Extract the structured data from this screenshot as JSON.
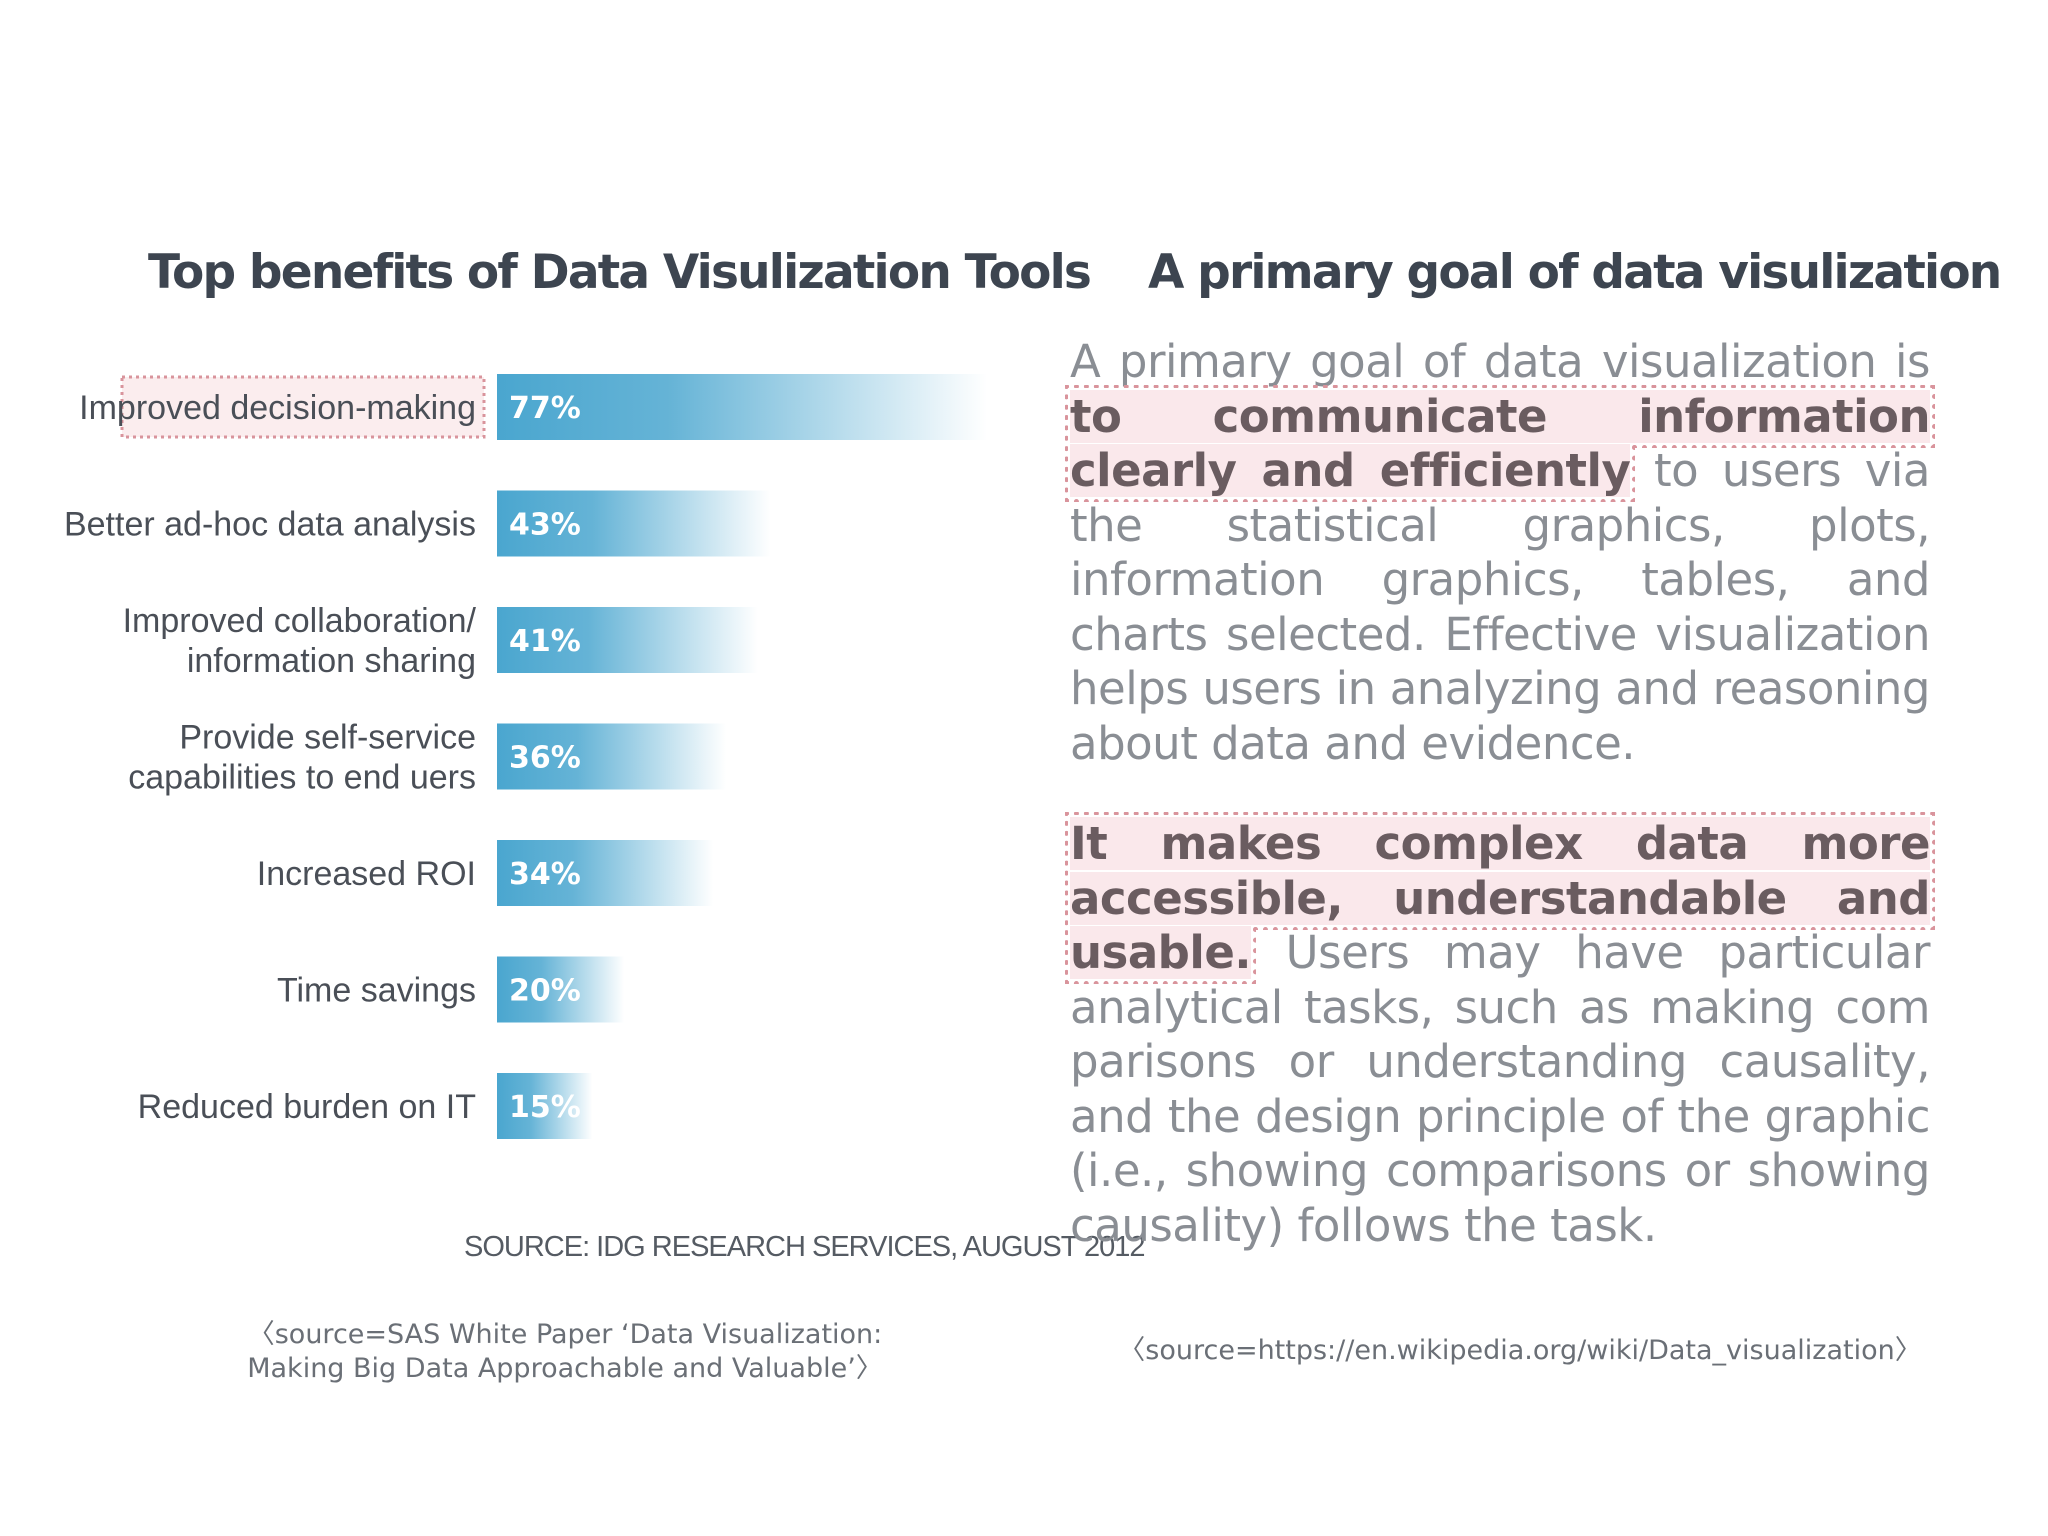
{
  "left_panel": {
    "title": "Top benefits of Data Visulization Tools",
    "source_note": "SOURCE: IDG RESEARCH SERVICES, AUGUST 2012",
    "citation_line1": "〈source=SAS White Paper ‘Data Visualization:",
    "citation_line2": "Making Big Data Approachable  and Valuable’〉"
  },
  "right_panel": {
    "title": "A primary goal of data visulization",
    "para1": {
      "pre": "A primary goal of data visualization is ",
      "highlight": "to communicate information clearly and efficiently",
      "post": " to users via the statistical graphics, plots, information graphics, tables, and charts selected. Effective visualization helps users in analyzing and reasoning about data and evidence."
    },
    "para2": {
      "highlight": "It makes complex data more accessible, understandable and usable.",
      "post": " Users may have particular analytical tasks, such as making com parisons or understanding causality, and the design principle of the graphic (i.e., showing comparisons or showing causality) follows the task."
    },
    "citation": "〈source=https://en.wikipedia.org/wiki/Data_visualization〉"
  },
  "colors": {
    "bar": "#4aa6cf",
    "highlight_border": "#d9949c",
    "highlight_fill": "#f6d6da"
  },
  "chart_data": {
    "type": "bar",
    "orientation": "horizontal",
    "title": "Top benefits of Data Visulization Tools",
    "categories": [
      [
        "Improved decision-making"
      ],
      [
        "Better ad-hoc data analysis"
      ],
      [
        "Improved collaboration/",
        "information sharing"
      ],
      [
        "Provide self-service",
        "capabilities to end uers"
      ],
      [
        "Increased ROI"
      ],
      [
        "Time savings"
      ],
      [
        "Reduced burden on IT"
      ]
    ],
    "values": [
      77,
      43,
      41,
      36,
      34,
      20,
      15
    ],
    "value_labels": [
      "77%",
      "43%",
      "41%",
      "36%",
      "34%",
      "20%",
      "15%"
    ],
    "highlighted_category_index": 0,
    "xlim": [
      0,
      80
    ],
    "grid": false,
    "legend": "none",
    "source": "SOURCE: IDG RESEARCH SERVICES, AUGUST 2012"
  }
}
